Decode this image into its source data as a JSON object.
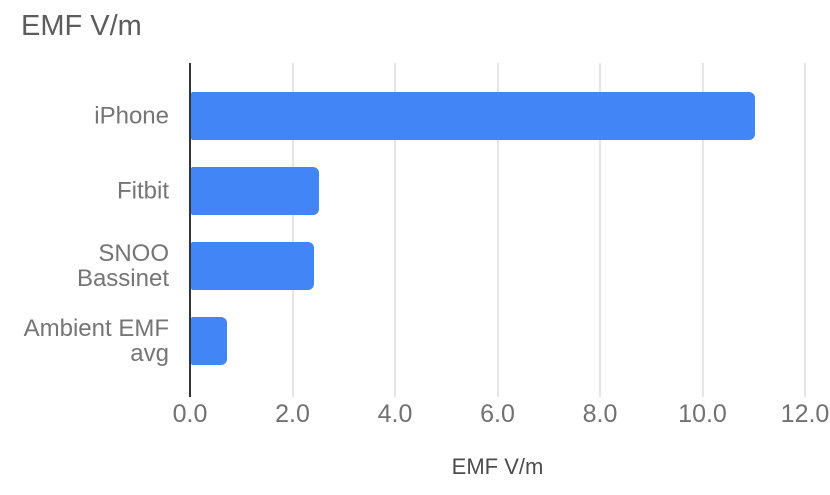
{
  "chart_data": {
    "type": "bar",
    "orientation": "horizontal",
    "title": "EMF V/m",
    "xlabel": "EMF V/m",
    "categories": [
      "iPhone",
      "Fitbit",
      "SNOO Bassinet",
      "Ambient EMF avg"
    ],
    "values": [
      11.0,
      2.5,
      2.4,
      0.7
    ],
    "xlim": [
      0,
      12
    ],
    "xtick_values": [
      0,
      2,
      4,
      6,
      8,
      10,
      12
    ],
    "xtick_labels": [
      "0.0",
      "2.0",
      "4.0",
      "6.0",
      "8.0",
      "10.0",
      "12.0"
    ],
    "grid": true,
    "legend": "none",
    "colors": {
      "bar": "#4285f4",
      "gridline": "#cccccc",
      "axis_line": "#333333",
      "title_text": "#5c5c5c",
      "category_text": "#757575",
      "tick_text": "#717171",
      "axis_title_text": "#4d4d4d"
    }
  }
}
